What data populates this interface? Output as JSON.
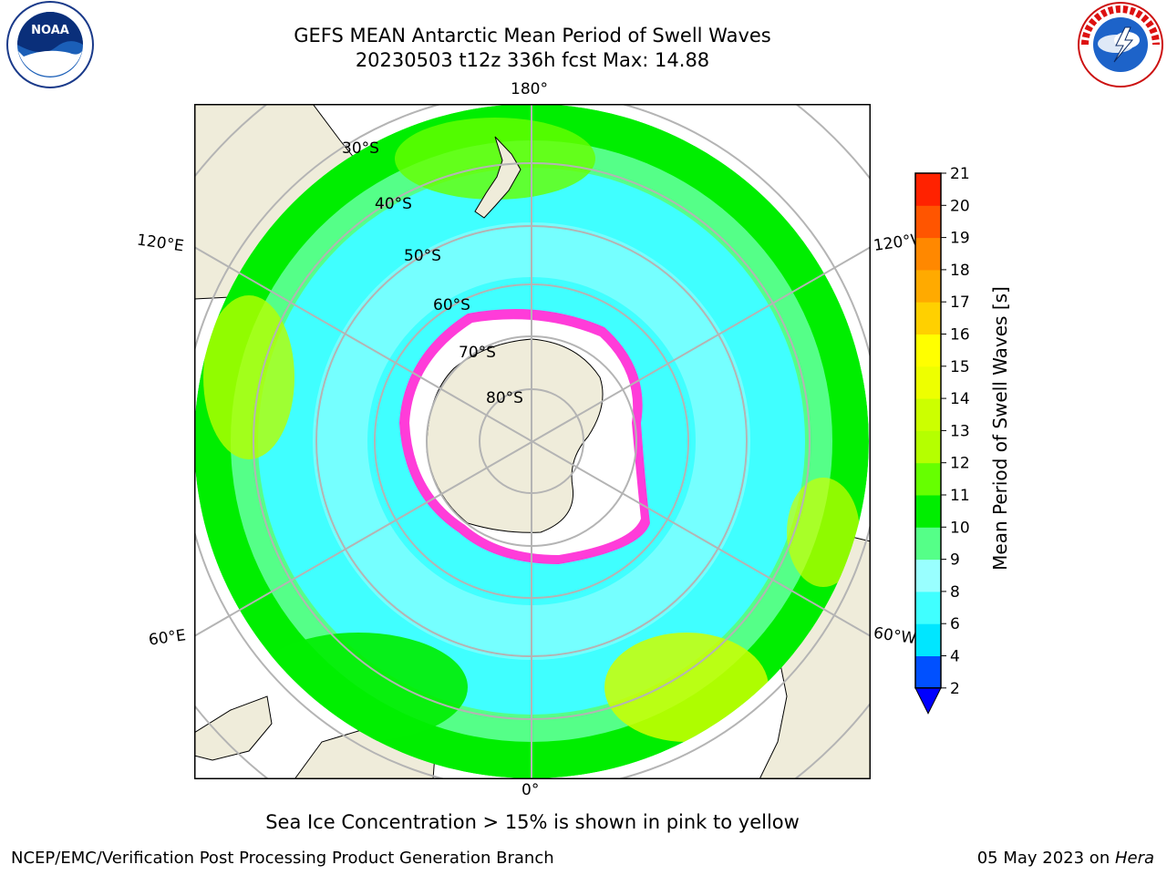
{
  "title": {
    "line1": "GEFS MEAN Antarctic Mean Period of Swell Waves",
    "line2": "20230503 t12z 336h fcst   Max: 14.88"
  },
  "logos": {
    "left": {
      "icon": "noaa-logo",
      "text": "NOAA"
    },
    "right": {
      "icon": "nws-logo",
      "text": "NATIONAL WEATHER SERVICE"
    }
  },
  "map": {
    "projection": "south-polar-stereographic",
    "lon_labels": {
      "top": "180°",
      "bottom": "0°",
      "upper_left": "120°E",
      "upper_right": "120°W",
      "lower_left": "60°E",
      "lower_right": "60°W"
    },
    "lat_labels": [
      "30°S",
      "40°S",
      "50°S",
      "60°S",
      "70°S",
      "80°S"
    ],
    "colors": {
      "land": "#efecda",
      "ice_shelf": "#ffffff",
      "ice_edge": "#ff3cd9",
      "grid": "#b4b4b4"
    }
  },
  "colorbar": {
    "label": "Mean Period of Swell Waves [s]",
    "ticks": [
      "2",
      "4",
      "6",
      "8",
      "9",
      "10",
      "11",
      "12",
      "13",
      "14",
      "15",
      "16",
      "17",
      "18",
      "19",
      "20",
      "21"
    ],
    "colors": [
      "#0050ff",
      "#00e6ff",
      "#40ffff",
      "#99ffff",
      "#55ff88",
      "#00ee00",
      "#66ff00",
      "#b5ff00",
      "#ccff00",
      "#eeff00",
      "#ffff00",
      "#ffd000",
      "#ffaa00",
      "#ff8800",
      "#ff5500",
      "#ff2200"
    ],
    "underflow_color": "#0000ff"
  },
  "caption": "Sea Ice Concentration > 15% is shown in pink to yellow",
  "footer": {
    "left": "NCEP/EMC/Verification Post Processing Product Generation Branch",
    "right_prefix": "05 May 2023 on ",
    "right_italic": "Hera"
  }
}
